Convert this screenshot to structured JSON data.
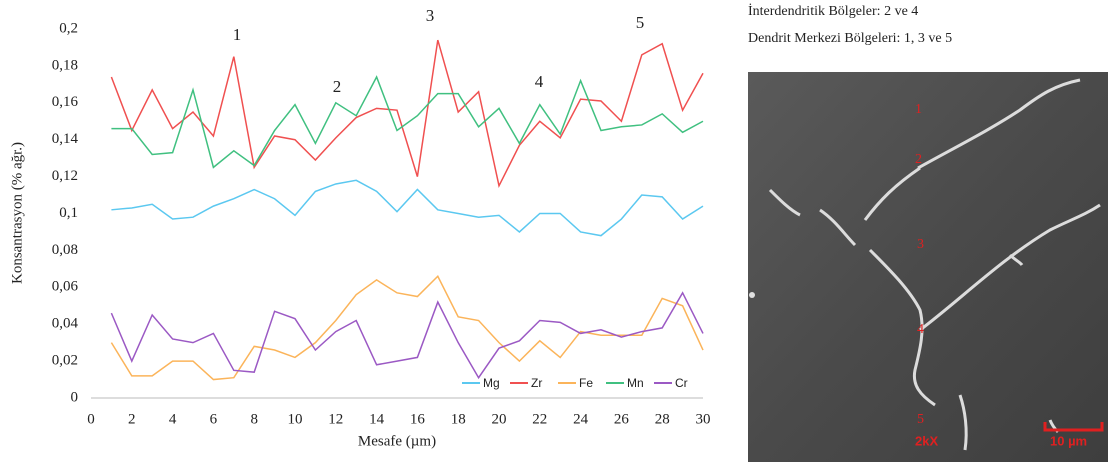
{
  "chart_data": {
    "type": "line",
    "x_label": "Mesafe (µm)",
    "y_label": "Konsantrasyon (% ağr.)",
    "x": [
      1,
      2,
      3,
      4,
      5,
      6,
      7,
      8,
      9,
      10,
      11,
      12,
      13,
      14,
      15,
      16,
      17,
      18,
      19,
      20,
      21,
      22,
      23,
      24,
      25,
      26,
      27,
      28,
      29,
      30
    ],
    "series": [
      {
        "name": "Mg",
        "color": "#5bc8f0",
        "values": [
          0.102,
          0.103,
          0.105,
          0.097,
          0.098,
          0.104,
          0.108,
          0.113,
          0.108,
          0.099,
          0.112,
          0.116,
          0.118,
          0.112,
          0.101,
          0.113,
          0.102,
          0.1,
          0.098,
          0.099,
          0.09,
          0.1,
          0.1,
          0.09,
          0.088,
          0.097,
          0.11,
          0.109,
          0.097,
          0.104
        ]
      },
      {
        "name": "Zr",
        "color": "#f05050",
        "values": [
          0.174,
          0.145,
          0.167,
          0.146,
          0.155,
          0.142,
          0.185,
          0.125,
          0.142,
          0.14,
          0.129,
          0.141,
          0.152,
          0.157,
          0.156,
          0.12,
          0.194,
          0.155,
          0.166,
          0.115,
          0.137,
          0.15,
          0.141,
          0.162,
          0.161,
          0.15,
          0.186,
          0.192,
          0.156,
          0.176
        ]
      },
      {
        "name": "Fe",
        "color": "#fbb45a",
        "values": [
          0.03,
          0.012,
          0.012,
          0.02,
          0.02,
          0.01,
          0.011,
          0.028,
          0.026,
          0.022,
          0.03,
          0.042,
          0.056,
          0.064,
          0.057,
          0.055,
          0.066,
          0.044,
          0.042,
          0.03,
          0.02,
          0.031,
          0.022,
          0.036,
          0.034,
          0.034,
          0.034,
          0.054,
          0.05,
          0.026
        ]
      },
      {
        "name": "Mn",
        "color": "#40c080",
        "values": [
          0.146,
          0.146,
          0.132,
          0.133,
          0.167,
          0.125,
          0.134,
          0.126,
          0.145,
          0.159,
          0.138,
          0.16,
          0.153,
          0.174,
          0.145,
          0.153,
          0.165,
          0.165,
          0.147,
          0.157,
          0.138,
          0.159,
          0.143,
          0.172,
          0.145,
          0.147,
          0.148,
          0.154,
          0.144,
          0.15
        ]
      },
      {
        "name": "Cr",
        "color": "#9b59c4",
        "values": [
          0.046,
          0.02,
          0.045,
          0.032,
          0.03,
          0.035,
          0.015,
          0.014,
          0.047,
          0.043,
          0.026,
          0.036,
          0.042,
          0.018,
          0.02,
          0.022,
          0.052,
          0.03,
          0.011,
          0.027,
          0.031,
          0.042,
          0.041,
          0.035,
          0.037,
          0.033,
          0.036,
          0.038,
          0.057,
          0.035
        ]
      }
    ],
    "xlim": [
      0,
      30
    ],
    "xticks": [
      0,
      2,
      4,
      6,
      8,
      10,
      12,
      14,
      16,
      18,
      20,
      22,
      24,
      26,
      28,
      30
    ],
    "ylim": [
      0,
      0.2
    ],
    "yticks": [
      0,
      {
        "value": 0.02,
        "label": "0,02"
      },
      {
        "value": 0.04,
        "label": "0,04"
      },
      {
        "value": 0.06,
        "label": "0,06"
      },
      {
        "value": 0.08,
        "label": "0,08"
      },
      {
        "value": 0.1,
        "label": "0,1"
      },
      {
        "value": 0.12,
        "label": "0,12"
      },
      {
        "value": 0.14,
        "label": "0,14"
      },
      {
        "value": 0.16,
        "label": "0,16"
      },
      {
        "value": 0.18,
        "label": "0,18"
      },
      {
        "value": 0.2,
        "label": "0,2"
      }
    ],
    "grid": false,
    "legend": "bottom-right",
    "annotations": [
      "1",
      "2",
      "3",
      "4",
      "5"
    ]
  },
  "side_panel": {
    "lines": [
      "İnterdendritik Bölgeler: 2 ve 4",
      "Dendrit Merkezi Bölgeleri: 1, 3 ve 5"
    ],
    "micrograph": {
      "labels": [
        "1",
        "2",
        "3",
        "4",
        "5"
      ],
      "magnification": "2kX",
      "scale": "10 µm"
    }
  }
}
